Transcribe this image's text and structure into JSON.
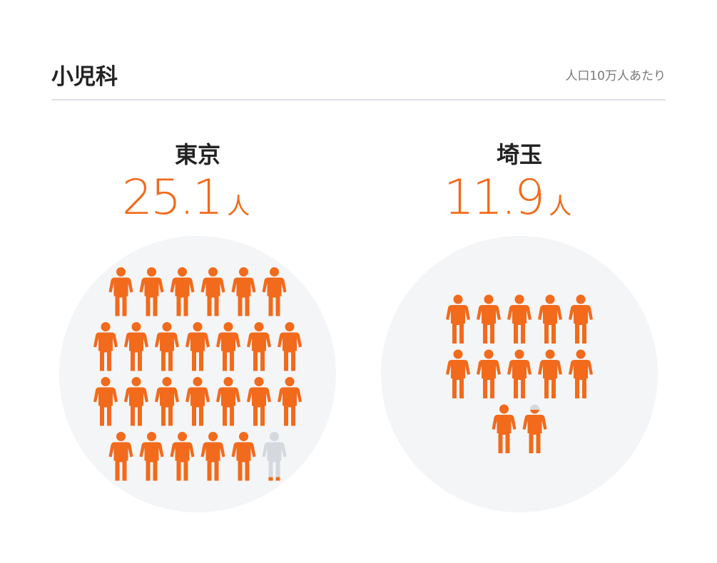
{
  "chart_data": {
    "type": "pictogram",
    "title": "小児科",
    "subtitle": "人口10万人あたり",
    "unit": "人",
    "categories": [
      "東京",
      "埼玉"
    ],
    "values": [
      25.1,
      11.9
    ],
    "color": "#f26a1b",
    "empty_color": "#d5d9de",
    "background_color": "#f4f5f7"
  }
}
